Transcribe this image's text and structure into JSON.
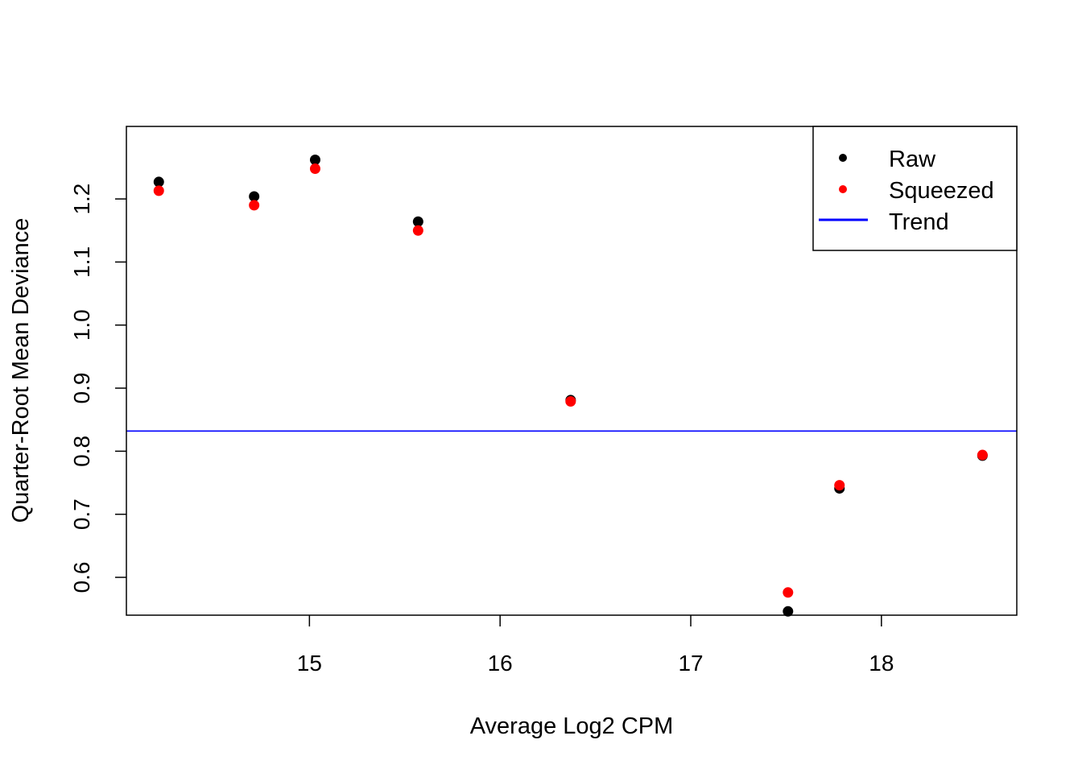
{
  "chart_data": {
    "type": "scatter",
    "title": "",
    "xlabel": "Average Log2 CPM",
    "ylabel": "Quarter-Root Mean Deviance",
    "xlim": [
      14.04,
      18.71
    ],
    "ylim": [
      0.54,
      1.315
    ],
    "x_ticks": [
      15,
      16,
      17,
      18
    ],
    "y_ticks": [
      0.6,
      0.7,
      0.8,
      0.9,
      1.0,
      1.1,
      1.2
    ],
    "x_tick_labels": [
      "15",
      "16",
      "17",
      "18"
    ],
    "y_tick_labels": [
      "0.6",
      "0.7",
      "0.8",
      "0.9",
      "1.0",
      "1.1",
      "1.2"
    ],
    "grid": false,
    "legend_position": "top-right",
    "series": [
      {
        "name": "Raw",
        "color": "#000000",
        "x": [
          14.21,
          14.71,
          15.03,
          15.57,
          16.37,
          17.51,
          17.78,
          18.53
        ],
        "y": [
          1.227,
          1.204,
          1.262,
          1.164,
          0.881,
          0.546,
          0.741,
          0.793
        ]
      },
      {
        "name": "Squeezed",
        "color": "#ff0000",
        "x": [
          14.21,
          14.71,
          15.03,
          15.57,
          16.37,
          17.51,
          17.78,
          18.53
        ],
        "y": [
          1.213,
          1.19,
          1.248,
          1.15,
          0.879,
          0.576,
          0.746,
          0.794
        ]
      }
    ],
    "trend": {
      "name": "Trend",
      "color": "#0000ff",
      "y": 0.832
    }
  }
}
